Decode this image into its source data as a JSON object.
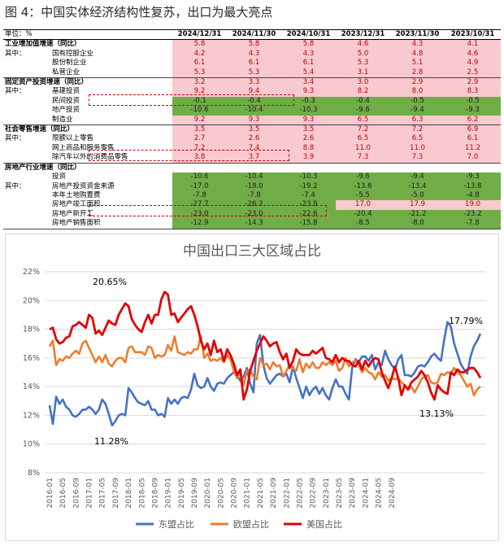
{
  "figure_title": "图 4：中国实体经济结构性复苏，出口为最大亮点",
  "table": {
    "unit_label": "单位：%",
    "columns": [
      "2024/12/31",
      "2024/11/30",
      "2024/10/31",
      "2023/12/31",
      "2023/11/30",
      "2023/10/31"
    ],
    "groups": [
      {
        "title": "工业增加值增速（同比）",
        "rows": [
          {
            "label": "",
            "values": [
              "5.8",
              "5.8",
              "5.8",
              "4.6",
              "4.3",
              "4.1"
            ],
            "colors": [
              "p",
              "p",
              "p",
              "p",
              "p",
              "p"
            ]
          },
          {
            "sub_label": "其中：",
            "label": "国有控股企业",
            "values": [
              "4.2",
              "4.3",
              "4.3",
              "5.0",
              "4.8",
              "4.6"
            ],
            "colors": [
              "p",
              "p",
              "p",
              "p",
              "p",
              "p"
            ]
          },
          {
            "label": "股份制企业",
            "values": [
              "6.1",
              "6.1",
              "6.1",
              "5.3",
              "5.1",
              "4.9"
            ],
            "colors": [
              "p",
              "p",
              "p",
              "p",
              "p",
              "p"
            ]
          },
          {
            "label": "私营企业",
            "values": [
              "5.3",
              "5.3",
              "5.4",
              "3.1",
              "2.8",
              "2.5"
            ],
            "colors": [
              "p",
              "p",
              "p",
              "p",
              "p",
              "p"
            ]
          }
        ]
      },
      {
        "title": "固定资产投资增速（同比）",
        "rows": [
          {
            "label": "",
            "values": [
              "3.2",
              "3.3",
              "3.4",
              "3.0",
              "2.9",
              "2.9"
            ],
            "colors": [
              "p",
              "p",
              "p",
              "p",
              "p",
              "p"
            ]
          },
          {
            "sub_label": "其中：",
            "label": "基建投资",
            "values": [
              "9.2",
              "9.4",
              "9.3",
              "8.2",
              "8.0",
              "8.3"
            ],
            "colors": [
              "p",
              "p",
              "p",
              "p",
              "p",
              "p"
            ]
          },
          {
            "label": "民间投资",
            "values": [
              "-0.1",
              "-0.4",
              "-0.3",
              "-0.4",
              "-0.5",
              "-0.5"
            ],
            "colors": [
              "g",
              "g",
              "g",
              "g",
              "g",
              "g"
            ]
          },
          {
            "label": "地产投资",
            "values": [
              "-10.6",
              "-10.4",
              "-10.3",
              "-9.6",
              "-9.4",
              "-9.3"
            ],
            "colors": [
              "g",
              "g",
              "g",
              "g",
              "g",
              "g"
            ]
          },
          {
            "label": "制造业",
            "values": [
              "9.2",
              "9.3",
              "9.3",
              "6.5",
              "6.3",
              "6.2"
            ],
            "colors": [
              "p",
              "p",
              "p",
              "p",
              "p",
              "p"
            ]
          }
        ]
      },
      {
        "title": "社会零售增速（同比）",
        "rows": [
          {
            "label": "",
            "values": [
              "3.5",
              "3.5",
              "3.5",
              "7.2",
              "7.2",
              "6.9"
            ],
            "colors": [
              "p",
              "p",
              "p",
              "p",
              "p",
              "p"
            ]
          },
          {
            "sub_label": "其中：",
            "label": "限额以上零售",
            "values": [
              "2.7",
              "2.6",
              "2.6",
              "6.5",
              "6.5",
              "6.1"
            ],
            "colors": [
              "p",
              "p",
              "p",
              "p",
              "p",
              "p"
            ]
          },
          {
            "label": "网上商品和服务零售",
            "values": [
              "7.2",
              "7.4",
              "8.8",
              "11.0",
              "11.0",
              "11.2"
            ],
            "colors": [
              "p",
              "p",
              "p",
              "p",
              "p",
              "p"
            ]
          },
          {
            "label": "除汽车以外的消费品零售",
            "values": [
              "3.8",
              "3.7",
              "3.9",
              "7.3",
              "7.3",
              "7.0"
            ],
            "colors": [
              "p",
              "p",
              "p",
              "p",
              "p",
              "p"
            ]
          }
        ]
      },
      {
        "title": "房地产行业增速（同比）",
        "rows": [
          {
            "label": "投资",
            "values": [
              "-10.6",
              "-10.4",
              "-10.3",
              "-9.6",
              "-9.4",
              "-9.3"
            ],
            "colors": [
              "g",
              "g",
              "g",
              "g",
              "g",
              "g"
            ]
          },
          {
            "sub_label": "其中：",
            "label": "房地产投资资金来源",
            "values": [
              "-17.0",
              "-18.0",
              "-19.2",
              "-13.6",
              "-13.4",
              "-13.8"
            ],
            "colors": [
              "g",
              "g",
              "g",
              "g",
              "g",
              "g"
            ]
          },
          {
            "label": "本年土地购置费",
            "values": [
              "-7.8",
              "-7.8",
              "-7.4",
              "-5.5",
              "-5.0",
              "-4.8"
            ],
            "colors": [
              "g",
              "g",
              "g",
              "g",
              "g",
              "g"
            ]
          },
          {
            "label": "房地产竣工面积",
            "values": [
              "-27.7",
              "-26.2",
              "-23.9",
              "17.0",
              "17.9",
              "19.0"
            ],
            "colors": [
              "g",
              "g",
              "g",
              "p",
              "p",
              "p"
            ]
          },
          {
            "label": "房地产新开工",
            "values": [
              "-23.0",
              "-23.0",
              "-22.6",
              "-20.4",
              "-21.2",
              "-23.2"
            ],
            "colors": [
              "g",
              "g",
              "g",
              "g",
              "g",
              "g"
            ]
          },
          {
            "label": "房地产销售面积",
            "values": [
              "-12.9",
              "-14.3",
              "-15.8",
              "-8.5",
              "-8.0",
              "-7.8"
            ],
            "colors": [
              "g",
              "g",
              "g",
              "g",
              "g",
              "g"
            ]
          }
        ]
      }
    ]
  },
  "colors": {
    "asean": "#4472c4",
    "eu": "#ed7d31",
    "us": "#e30000",
    "pink_fill": "#f9c9d0",
    "green_fill": "#70ad47",
    "highlight_box": "#d00000"
  },
  "chart_data": {
    "type": "line",
    "title": "中国出口三大区域占比",
    "ylim": [
      0.08,
      0.22
    ],
    "yticks": [
      "8%",
      "10%",
      "12%",
      "14%",
      "16%",
      "18%",
      "20%",
      "22%"
    ],
    "xticks": [
      "2016-01",
      "2016-05",
      "2016-09",
      "2017-01",
      "2017-05",
      "2017-09",
      "2018-01",
      "2018-05",
      "2018-09",
      "2019-01",
      "2019-05",
      "2019-09",
      "2020-01",
      "2020-05",
      "2020-09",
      "2021-01",
      "2021-05",
      "2021-09",
      "2022-01",
      "2022-05",
      "2022-09",
      "2023-01",
      "2023-05",
      "2023-09",
      "2024-01",
      "2024-05",
      "2024-09"
    ],
    "x_start": "2016-01",
    "x_end": "2024-12",
    "grid": true,
    "legend_position": "bottom",
    "annotations": [
      "20.65%",
      "11.28%",
      "17.79%",
      "13.13%"
    ],
    "series": [
      {
        "name": "东盟占比",
        "values": [
          0.127,
          0.114,
          0.133,
          0.128,
          0.131,
          0.126,
          0.124,
          0.12,
          0.119,
          0.121,
          0.124,
          0.124,
          0.126,
          0.124,
          0.121,
          0.124,
          0.131,
          0.128,
          0.121,
          0.113,
          0.116,
          0.12,
          0.121,
          0.12,
          0.139,
          0.136,
          0.132,
          0.129,
          0.128,
          0.127,
          0.13,
          0.124,
          0.124,
          0.12,
          0.121,
          0.119,
          0.132,
          0.128,
          0.131,
          0.128,
          0.132,
          0.133,
          0.132,
          0.138,
          0.149,
          0.141,
          0.139,
          0.14,
          0.146,
          0.14,
          0.137,
          0.142,
          0.143,
          0.142,
          0.146,
          0.148,
          0.15,
          0.148,
          0.144,
          0.147,
          0.153,
          0.142,
          0.136,
          0.17,
          0.176,
          0.155,
          0.146,
          0.142,
          0.145,
          0.148,
          0.149,
          0.147,
          0.149,
          0.143,
          0.154,
          0.146,
          0.139,
          0.132,
          0.14,
          0.134,
          0.138,
          0.14,
          0.135,
          0.139,
          0.134,
          0.131,
          0.139,
          0.145,
          0.14,
          0.14,
          0.135,
          0.131,
          0.153,
          0.159,
          0.157,
          0.161,
          0.161,
          0.158,
          0.162,
          0.152,
          0.157,
          0.155,
          0.165,
          0.159,
          0.155,
          0.152,
          0.159,
          0.162,
          0.148,
          0.148,
          0.147,
          0.15,
          0.154,
          0.155,
          0.154,
          0.157,
          0.161,
          0.163,
          0.16,
          0.158,
          0.173,
          0.185,
          0.182,
          0.17,
          0.163,
          0.156,
          0.152,
          0.149,
          0.161,
          0.168,
          0.172,
          0.177
        ]
      },
      {
        "name": "欧盟占比",
        "values": [
          0.168,
          0.172,
          0.155,
          0.159,
          0.158,
          0.161,
          0.16,
          0.163,
          0.165,
          0.163,
          0.17,
          0.172,
          0.167,
          0.162,
          0.157,
          0.161,
          0.157,
          0.162,
          0.156,
          0.154,
          0.158,
          0.16,
          0.16,
          0.157,
          0.167,
          0.168,
          0.164,
          0.164,
          0.164,
          0.162,
          0.168,
          0.167,
          0.16,
          0.162,
          0.161,
          0.162,
          0.169,
          0.165,
          0.175,
          0.164,
          0.163,
          0.162,
          0.164,
          0.163,
          0.166,
          0.166,
          0.175,
          0.16,
          0.163,
          0.158,
          0.159,
          0.158,
          0.16,
          0.157,
          0.162,
          0.159,
          0.151,
          0.146,
          0.15,
          0.141,
          0.151,
          0.152,
          0.147,
          0.145,
          0.16,
          0.155,
          0.156,
          0.152,
          0.157,
          0.154,
          0.155,
          0.147,
          0.151,
          0.155,
          0.153,
          0.151,
          0.159,
          0.15,
          0.156,
          0.153,
          0.157,
          0.153,
          0.153,
          0.157,
          0.155,
          0.157,
          0.155,
          0.158,
          0.151,
          0.153,
          0.16,
          0.154,
          0.157,
          0.158,
          0.155,
          0.15,
          0.153,
          0.15,
          0.149,
          0.145,
          0.15,
          0.147,
          0.148,
          0.144,
          0.146,
          0.145,
          0.146,
          0.143,
          0.141,
          0.138,
          0.14,
          0.136,
          0.14,
          0.145,
          0.147,
          0.148,
          0.143,
          0.142,
          0.143,
          0.149,
          0.148,
          0.15,
          0.149,
          0.153,
          0.15,
          0.148,
          0.144,
          0.14,
          0.142,
          0.134,
          0.138,
          0.14
        ]
      },
      {
        "name": "美国占比",
        "values": [
          0.18,
          0.181,
          0.173,
          0.17,
          0.171,
          0.174,
          0.175,
          0.182,
          0.183,
          0.185,
          0.183,
          0.181,
          0.19,
          0.188,
          0.177,
          0.179,
          0.176,
          0.181,
          0.186,
          0.184,
          0.183,
          0.19,
          0.194,
          0.198,
          0.196,
          0.187,
          0.183,
          0.18,
          0.178,
          0.185,
          0.19,
          0.184,
          0.19,
          0.19,
          0.201,
          0.206,
          0.204,
          0.19,
          0.191,
          0.185,
          0.188,
          0.191,
          0.194,
          0.196,
          0.19,
          0.182,
          0.172,
          0.166,
          0.17,
          0.162,
          0.172,
          0.164,
          0.166,
          0.158,
          0.166,
          0.162,
          0.156,
          0.148,
          0.152,
          0.131,
          0.138,
          0.151,
          0.158,
          0.165,
          0.17,
          0.175,
          0.172,
          0.168,
          0.17,
          0.171,
          0.164,
          0.159,
          0.163,
          0.153,
          0.158,
          0.166,
          0.163,
          0.162,
          0.162,
          0.162,
          0.165,
          0.163,
          0.165,
          0.167,
          0.16,
          0.159,
          0.157,
          0.162,
          0.157,
          0.16,
          0.158,
          0.158,
          0.155,
          0.154,
          0.158,
          0.152,
          0.158,
          0.154,
          0.158,
          0.16,
          0.159,
          0.15,
          0.144,
          0.139,
          0.146,
          0.154,
          0.146,
          0.134,
          0.141,
          0.138,
          0.143,
          0.145,
          0.147,
          0.151,
          0.148,
          0.143,
          0.136,
          0.131,
          0.141,
          0.138,
          0.136,
          0.135,
          0.15,
          0.148,
          0.152,
          0.15,
          0.15,
          0.152,
          0.153,
          0.153,
          0.15,
          0.146
        ]
      }
    ]
  }
}
